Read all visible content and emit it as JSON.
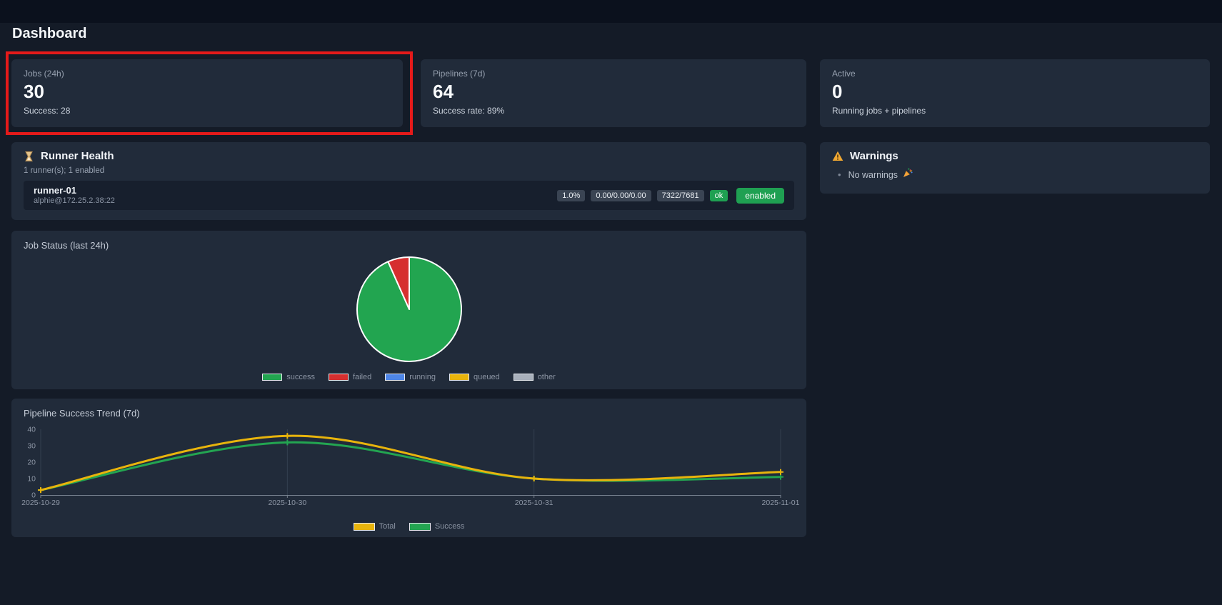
{
  "page_title": "Dashboard",
  "annotation": {
    "color": "#e41a1a"
  },
  "stat_cards": [
    {
      "label": "Jobs (24h)",
      "value": "30",
      "sub": "Success: 28",
      "highlighted": true
    },
    {
      "label": "Pipelines (7d)",
      "value": "64",
      "sub": "Success rate: 89%",
      "highlighted": false
    },
    {
      "label": "Active",
      "value": "0",
      "sub": "Running jobs + pipelines",
      "highlighted": false
    }
  ],
  "runner_health": {
    "icon": "hourglass-icon",
    "title": "Runner Health",
    "summary": "1 runner(s); 1 enabled",
    "runners": [
      {
        "name": "runner-01",
        "address": "alphie@172.25.2.38:22",
        "badges": [
          {
            "text": "1.0%",
            "style": "neutral"
          },
          {
            "text": "0.00/0.00/0.00",
            "style": "neutral"
          },
          {
            "text": "7322/7681",
            "style": "neutral"
          },
          {
            "text": "ok",
            "style": "success"
          },
          {
            "text": "enabled",
            "style": "success-lg"
          }
        ]
      }
    ]
  },
  "warnings": {
    "icon": "warning-icon",
    "title": "Warnings",
    "items": [
      {
        "text": "No warnings",
        "icon": "party-popper-icon"
      }
    ]
  },
  "chart_data": [
    {
      "type": "pie",
      "title": "Job Status (last 24h)",
      "labels": [
        "success",
        "failed",
        "running",
        "queued",
        "other"
      ],
      "values": [
        28,
        2,
        0,
        0,
        0
      ],
      "colors": [
        "#22a550",
        "#d62f2f",
        "#4e86e8",
        "#e9b40b",
        "#a8b0bb"
      ],
      "legend_position": "bottom"
    },
    {
      "type": "line",
      "title": "Pipeline Success Trend (7d)",
      "x": [
        "2025-10-29",
        "2025-10-30",
        "2025-10-31",
        "2025-11-01"
      ],
      "series": [
        {
          "name": "Total",
          "color": "#e8b40c",
          "values": [
            3,
            36,
            10,
            14
          ]
        },
        {
          "name": "Success",
          "color": "#23a551",
          "values": [
            3,
            32,
            10,
            11
          ]
        }
      ],
      "ylim": [
        0,
        40
      ],
      "yticks": [
        0,
        10,
        20,
        30,
        40
      ],
      "legend_position": "bottom",
      "grid": "vertical"
    }
  ]
}
